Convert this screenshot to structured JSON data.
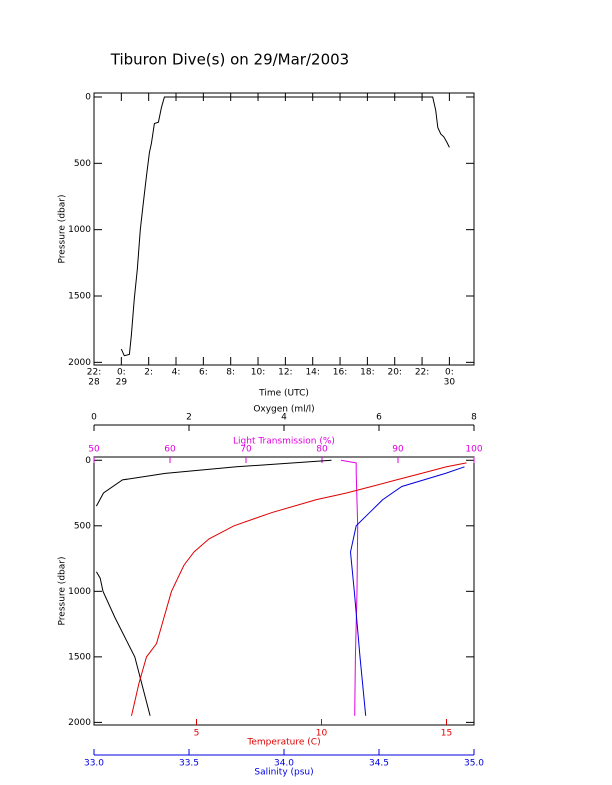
{
  "chart_data": [
    {
      "type": "line",
      "title": "Tiburon Dive(s) on 29/Mar/2003",
      "x_label": "Time (UTC)",
      "y_label": "Pressure (dbar)",
      "xlim": [
        -2,
        25.8
      ],
      "ylim": [
        2020,
        -30
      ],
      "xticks": [
        {
          "value": -2,
          "label": "22:",
          "sublabel": "28"
        },
        {
          "value": 0,
          "label": "0:",
          "sublabel": "29"
        },
        {
          "value": 2,
          "label": "2:"
        },
        {
          "value": 4,
          "label": "4:"
        },
        {
          "value": 6,
          "label": "6:"
        },
        {
          "value": 8,
          "label": "8:"
        },
        {
          "value": 10,
          "label": "10:"
        },
        {
          "value": 12,
          "label": "12:"
        },
        {
          "value": 14,
          "label": "14:"
        },
        {
          "value": 16,
          "label": "16:"
        },
        {
          "value": 18,
          "label": "18:"
        },
        {
          "value": 20,
          "label": "20:"
        },
        {
          "value": 22,
          "label": "22:"
        },
        {
          "value": 24,
          "label": "0:",
          "sublabel": "30"
        }
      ],
      "yticks": [
        0,
        500,
        1000,
        1500,
        2000
      ],
      "series": [
        {
          "color": "#000000",
          "x": [
            0,
            0.22,
            0.59,
            0.73,
            0.95,
            1.17,
            1.39,
            1.61,
            1.83,
            2.05,
            2.2,
            2.42,
            2.71,
            2.93,
            3.15,
            22.78,
            23.0,
            23.15,
            23.37,
            23.59,
            23.81,
            24.0
          ],
          "values": [
            1900,
            1950,
            1940,
            1800,
            1520,
            1300,
            1000,
            800,
            600,
            420,
            350,
            200,
            190,
            80,
            0,
            0,
            100,
            230,
            280,
            300,
            340,
            380
          ]
        }
      ]
    },
    {
      "type": "profile",
      "y_label": "Pressure (dbar)",
      "ylim": [
        2020,
        -25
      ],
      "yticks": [
        0,
        500,
        1000,
        1500,
        2000
      ],
      "axes": [
        {
          "label": "Light Transmission (%)",
          "color": "#e000e0",
          "side": "top",
          "lim": [
            50,
            100
          ],
          "ticks": [
            50,
            60,
            70,
            80,
            90,
            100
          ],
          "pressure": [
            0,
            20,
            100,
            500,
            1000,
            1500,
            1950
          ],
          "values": [
            82.5,
            84.5,
            84.5,
            84.7,
            84.6,
            84.4,
            84.3
          ]
        },
        {
          "label": "Oxygen (ml/l)",
          "color": "#000000",
          "side": "top",
          "lim": [
            0,
            8
          ],
          "ticks": [
            0,
            2,
            4,
            6,
            8
          ],
          "pressure": [
            0,
            50,
            100,
            150,
            250,
            350,
            null,
            850,
            900,
            1000,
            1200,
            1500,
            1950
          ],
          "values": [
            5,
            3,
            1.5,
            0.6,
            0.2,
            0.05,
            null,
            0.05,
            0.13,
            0.19,
            0.44,
            0.86,
            1.18
          ]
        },
        {
          "label": "Temperature (C)",
          "color": "#e00000",
          "side": "bottom",
          "lim": [
            0.9,
            16.1
          ],
          "ticks": [
            5,
            10,
            15
          ],
          "pressure": [
            20,
            50,
            100,
            150,
            200,
            250,
            300,
            400,
            500,
            600,
            700,
            800,
            1000,
            1200,
            1400,
            1500,
            1700,
            1950
          ],
          "values": [
            15.8,
            15,
            14,
            13,
            12,
            11,
            9.8,
            8,
            6.5,
            5.5,
            4.9,
            4.5,
            4.0,
            3.7,
            3.4,
            3.0,
            2.7,
            2.4
          ]
        },
        {
          "label": "Salinity (psu)",
          "color": "#0000e0",
          "side": "bottom",
          "lim": [
            33,
            35
          ],
          "ticks": [
            {
              "value": 33,
              "label": "33.0"
            },
            33.5,
            {
              "value": 34,
              "label": "34.0"
            },
            34.5,
            {
              "value": 35,
              "label": "35.0"
            }
          ],
          "pressure": [
            50,
            100,
            200,
            300,
            400,
            500,
            700,
            1000,
            1500,
            1950
          ],
          "values": [
            34.95,
            34.85,
            34.62,
            34.52,
            34.45,
            34.38,
            34.35,
            34.37,
            34.4,
            34.43
          ]
        }
      ]
    }
  ]
}
